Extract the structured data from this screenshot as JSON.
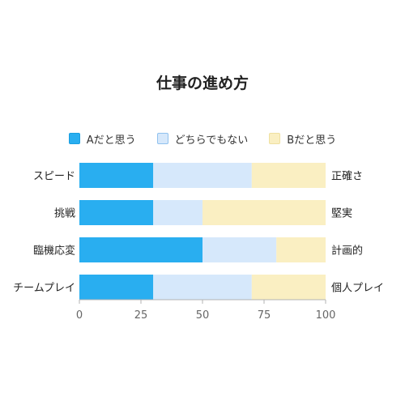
{
  "chart_data": {
    "type": "bar",
    "orientation": "horizontal",
    "stacked": true,
    "title": "仕事の進め方",
    "categories": [
      "スピード",
      "挑戦",
      "臨機応変",
      "チームプレイ"
    ],
    "right_labels": [
      "正確さ",
      "堅実",
      "計画的",
      "個人プレイ"
    ],
    "series": [
      {
        "name": "Aだと思う",
        "color": "#29aef0",
        "values": [
          30,
          30,
          50,
          30
        ]
      },
      {
        "name": "どちらでもない",
        "color": "#d6e8fb",
        "values": [
          40,
          20,
          30,
          40
        ]
      },
      {
        "name": "Bだと思う",
        "color": "#faefc2",
        "values": [
          30,
          50,
          20,
          30
        ]
      }
    ],
    "xlim": [
      0,
      100
    ],
    "xticks": [
      0,
      25,
      50,
      75,
      100
    ],
    "grid": false,
    "legend_position": "top"
  }
}
